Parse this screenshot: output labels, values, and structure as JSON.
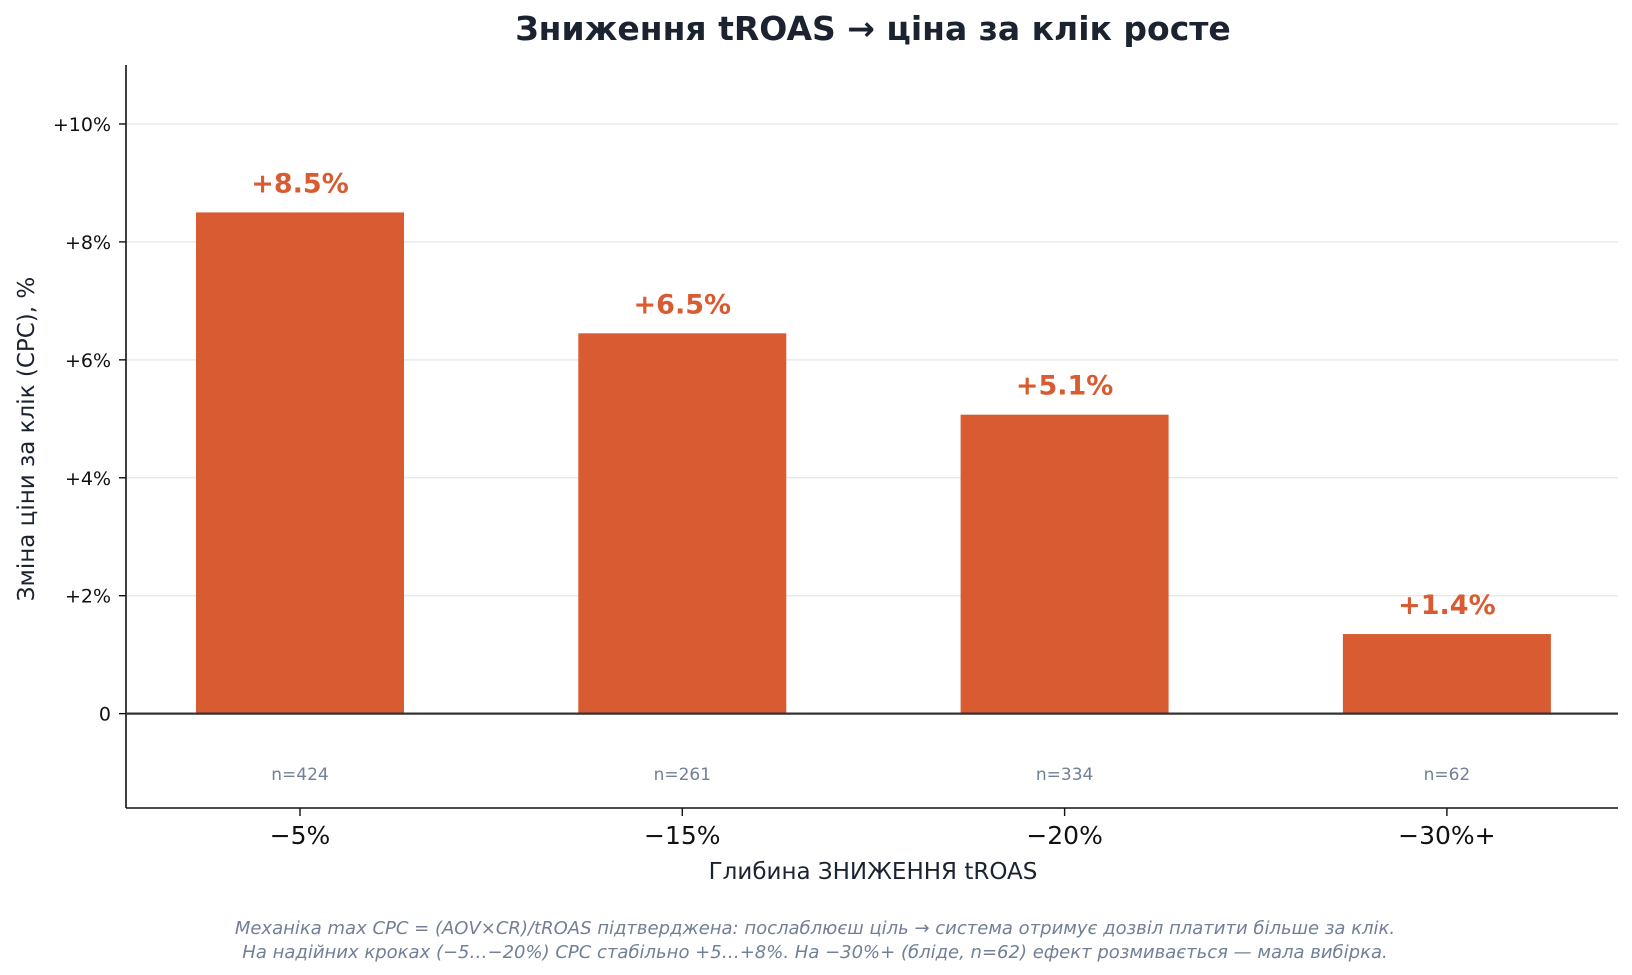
{
  "chart_data": {
    "type": "bar",
    "title": "Зниження tROAS → ціна за клік росте",
    "xlabel": "Глибина ЗНИЖЕННЯ tROAS",
    "ylabel": "Зміна ціни за клік (CPC), %",
    "categories": [
      "−5%",
      "−15%",
      "−20%",
      "−30%+"
    ],
    "values": [
      8.5,
      6.45,
      5.07,
      1.35
    ],
    "value_labels": [
      "+8.5%",
      "+6.5%",
      "+5.1%",
      "+1.4%"
    ],
    "sample_labels": [
      "n=424",
      "n=261",
      "n=334",
      "n=62"
    ],
    "ylim": [
      -1.6,
      11
    ],
    "yticks": [
      0,
      2,
      4,
      6,
      8,
      10
    ],
    "ytick_labels": [
      "0",
      "+2%",
      "+4%",
      "+6%",
      "+8%",
      "+10%"
    ],
    "grid": "horizontal",
    "bar_color": "#d85b31",
    "label_color": "#d85b31",
    "notes": [
      "Механіка max CPC = (AOV×CR)/tROAS підтверджена: послаблюєш ціль → система отримує дозвіл платити більше за клік.",
      "На надійних кроках (−5…−20%) CPC стабільно +5…+8%. На −30%+ (бліде, n=62) ефект розмивається — мала вибірка."
    ]
  }
}
